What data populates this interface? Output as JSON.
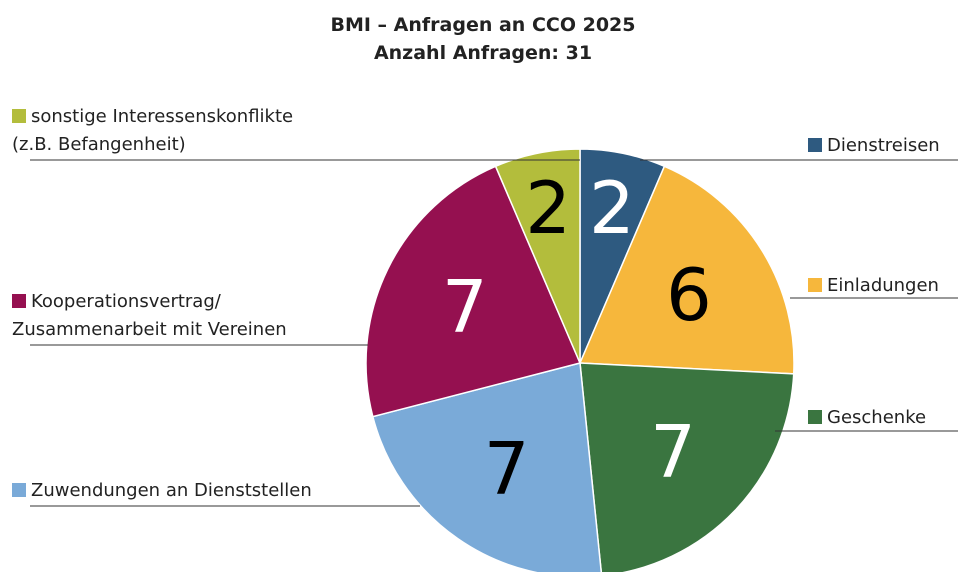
{
  "chart_data": {
    "type": "pie",
    "title": "BMI – Anfragen an CCO 2025",
    "subtitle": "Anzahl Anfragen: 31",
    "categories": [
      "Dienstreisen",
      "Einladungen",
      "Geschenke",
      "Zuwendungen an Dienststellen",
      "Kooperationsvertrag/\nZusammenarbeit mit Vereinen",
      "sonstige Interessenskonflikte\n(z.B. Befangenheit)"
    ],
    "values": [
      2,
      6,
      7,
      7,
      7,
      2
    ],
    "colors": [
      "#2e5a80",
      "#f6b73c",
      "#3a7540",
      "#7aaad8",
      "#951050",
      "#b3bd3c"
    ]
  }
}
